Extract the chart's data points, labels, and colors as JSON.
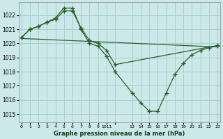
{
  "background_color": "#cce8e8",
  "grid_color": "#aacece",
  "line_color": "#2a5e2a",
  "title": "Graphe pression niveau de la mer (hPa)",
  "ylim": [
    1014.4,
    1022.9
  ],
  "yticks": [
    1015,
    1016,
    1017,
    1018,
    1019,
    1020,
    1021,
    1022
  ],
  "series1_x": [
    0,
    1,
    2,
    3,
    4,
    5,
    6,
    7,
    8,
    9,
    10,
    11,
    13,
    14,
    15,
    16,
    17,
    18,
    19,
    20,
    21,
    22,
    23
  ],
  "series1_y": [
    1020.4,
    1021.0,
    1021.2,
    1021.5,
    1021.8,
    1022.5,
    1022.5,
    1021.0,
    1020.0,
    1019.8,
    1019.1,
    1018.0,
    1016.5,
    1015.8,
    1015.2,
    1015.2,
    1016.5,
    1017.8,
    1018.6,
    1019.2,
    1019.5,
    1019.7,
    1019.8
  ],
  "series2_x": [
    0,
    1,
    2,
    3,
    4,
    5,
    6,
    7,
    8,
    9,
    10,
    11,
    23
  ],
  "series2_y": [
    1020.4,
    1021.0,
    1021.2,
    1021.5,
    1021.7,
    1022.3,
    1022.3,
    1021.1,
    1020.2,
    1020.0,
    1019.5,
    1018.5,
    1019.85
  ],
  "series3_x": [
    0,
    23
  ],
  "series3_y": [
    1020.35,
    1019.75
  ],
  "xtick_positions": [
    0,
    1,
    2,
    3,
    4,
    5,
    6,
    7,
    8,
    9,
    10,
    11,
    13,
    14,
    15,
    16,
    17,
    18,
    19,
    20,
    21,
    22,
    23
  ],
  "xtick_labels": [
    "0",
    "1",
    "2",
    "3",
    "4",
    "5",
    "6",
    "7",
    "8",
    "9",
    "1011",
    "",
    "13",
    "14",
    "15",
    "16",
    "17",
    "18",
    "19",
    "20",
    "21",
    "22",
    "23"
  ]
}
